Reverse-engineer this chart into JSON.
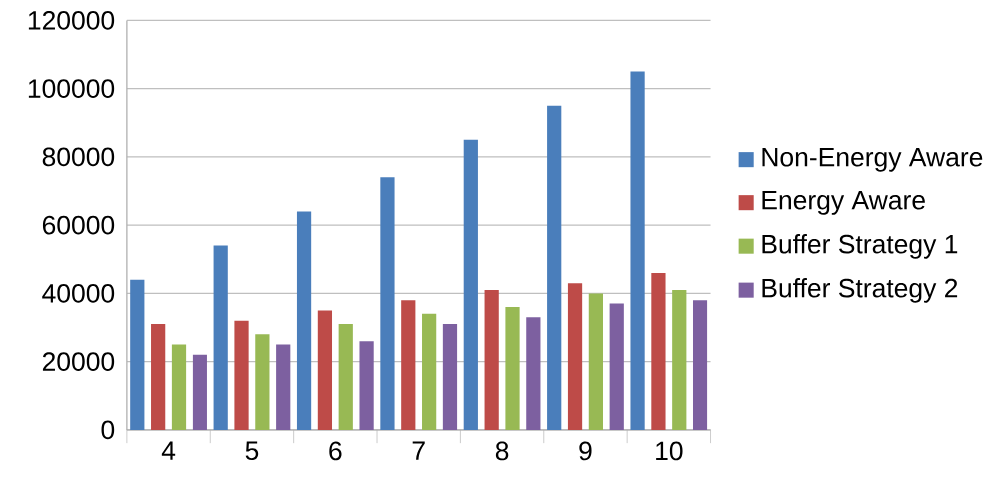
{
  "chart_data": {
    "type": "bar",
    "categories": [
      "4",
      "5",
      "6",
      "7",
      "8",
      "9",
      "10"
    ],
    "series": [
      {
        "name": "Non-Energy Aware",
        "color": "#4a7ebb",
        "values": [
          44000,
          54000,
          64000,
          74000,
          85000,
          95000,
          105000
        ]
      },
      {
        "name": "Energy Aware",
        "color": "#be4b48",
        "values": [
          31000,
          32000,
          35000,
          38000,
          41000,
          43000,
          46000
        ]
      },
      {
        "name": "Buffer Strategy 1",
        "color": "#98b954",
        "values": [
          25000,
          28000,
          31000,
          34000,
          36000,
          40000,
          41000
        ]
      },
      {
        "name": "Buffer Strategy 2",
        "color": "#7d60a0",
        "values": [
          22000,
          25000,
          26000,
          31000,
          33000,
          37000,
          38000
        ]
      }
    ],
    "ylim": [
      0,
      120000
    ],
    "yticks": [
      0,
      20000,
      40000,
      60000,
      80000,
      100000,
      120000
    ],
    "grid": "y",
    "legend": "right"
  }
}
